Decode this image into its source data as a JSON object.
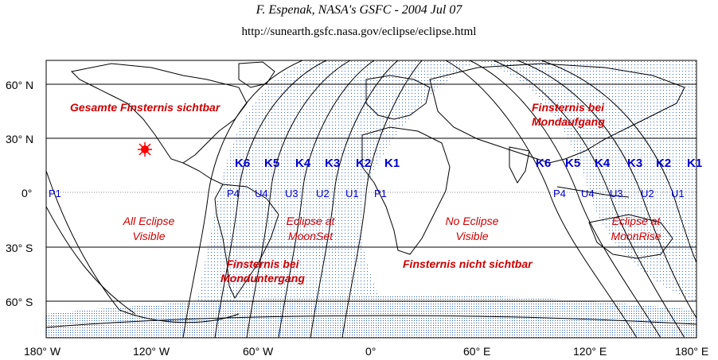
{
  "header": {
    "title": "F. Espenak, NASA's GSFC - 2004 Jul 07",
    "url": "http://sunearth.gsfc.nasa.gov/eclipse/eclipse.html"
  },
  "map": {
    "lat_labels": [
      "60° N",
      "30° N",
      "0°",
      "30° S",
      "60° S"
    ],
    "lon_labels": [
      "180° W",
      "120° W",
      "60° W",
      "0°",
      "60° E",
      "120° E",
      "180° E"
    ],
    "contacts_left": {
      "P": [
        "P1",
        "P4"
      ],
      "U": [
        "U4",
        "U3",
        "U2",
        "U1"
      ],
      "PR": [
        "P1"
      ]
    },
    "k_left": [
      "K6",
      "K5",
      "K4",
      "K3",
      "K2",
      "K1"
    ],
    "k_right": [
      "K6",
      "K5",
      "K4",
      "K3",
      "K2",
      "K1"
    ],
    "contacts_right": [
      "P4",
      "U4",
      "U3",
      "U2",
      "U1"
    ],
    "labels": {
      "gesamte": "Gesamte Finsternis sichtbar",
      "all_visible_1": "All Eclipse",
      "all_visible_2": "Visible",
      "moonset_1": "Eclipse at",
      "moonset_2": "MoonSet",
      "monduntergang_1": "Finsternis bei",
      "monduntergang_2": "Monduntergang",
      "no_eclipse_1": "No Eclipse",
      "no_eclipse_2": "Visible",
      "nicht_sichtbar": "Finsternis nicht sichtbar",
      "mondaufgang_1": "Finsternis bei",
      "mondaufgang_2": "Mondaufgang",
      "moonrise_1": "Eclipse at",
      "moonrise_2": "MoonRise"
    },
    "colors": {
      "red_label": "#cc0000",
      "blue_label": "#0000cc",
      "dot": "#3366cc",
      "sublunar": "#ff0000"
    }
  }
}
